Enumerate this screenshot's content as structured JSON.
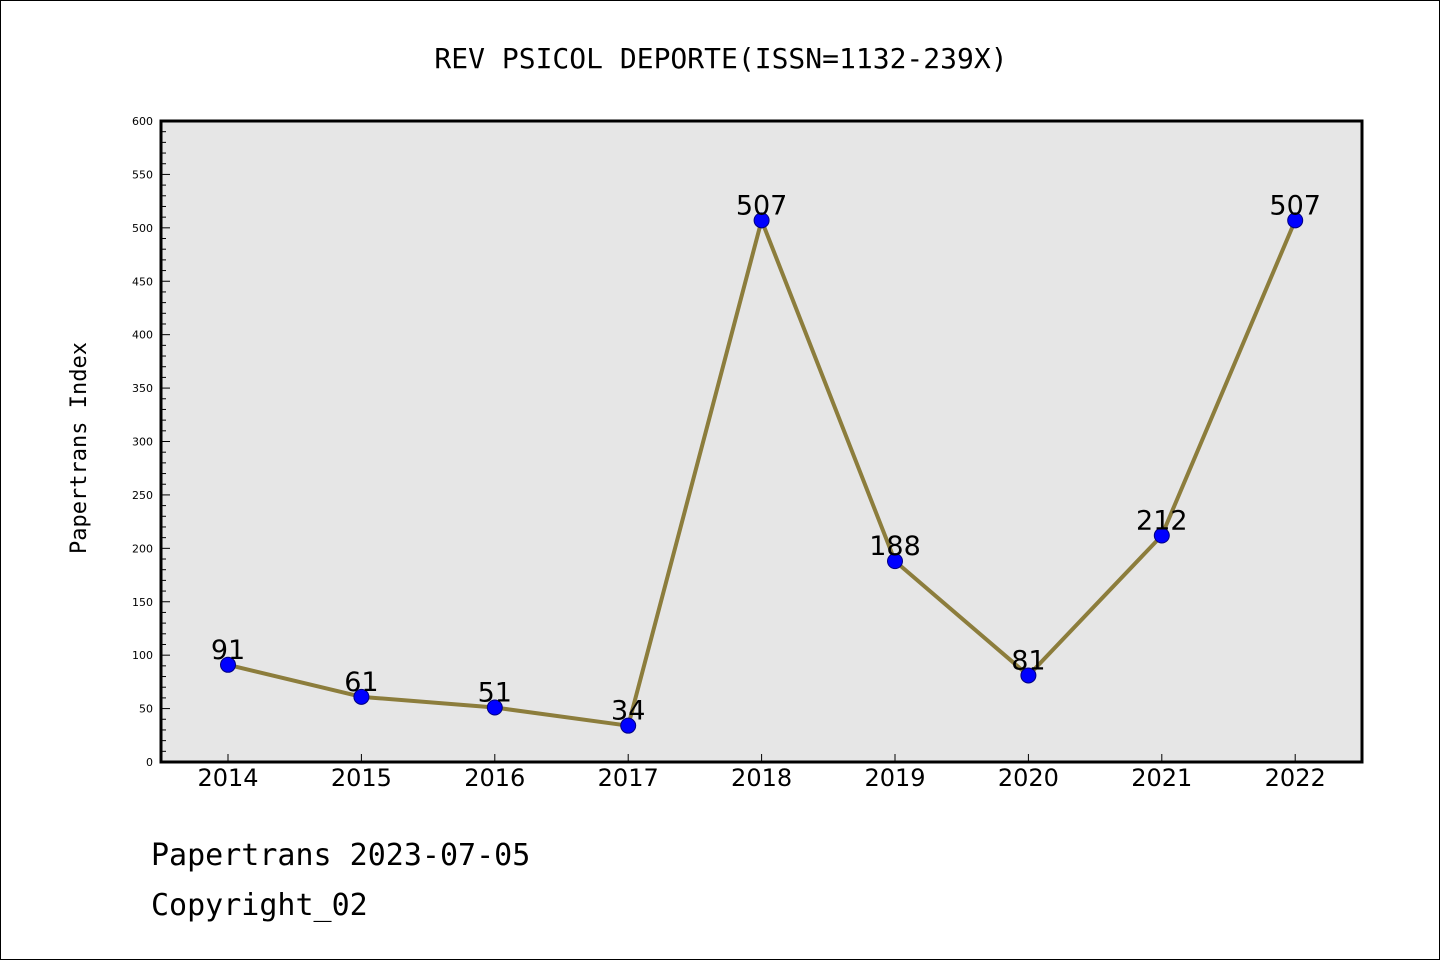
{
  "chart_data": {
    "type": "line",
    "title": "REV PSICOL DEPORTE(ISSN=1132-239X)",
    "xlabel": "",
    "ylabel": "Papertrans Index",
    "categories": [
      "2014",
      "2015",
      "2016",
      "2017",
      "2018",
      "2019",
      "2020",
      "2021",
      "2022"
    ],
    "series": [
      {
        "values": [
          91,
          61,
          51,
          34,
          507,
          188,
          81,
          212,
          507
        ],
        "line_color": "#8c7d3c",
        "marker_color": "#0000ff"
      }
    ],
    "data_labels": [
      "91",
      "61",
      "51",
      "34",
      "507",
      "188",
      "81",
      "212",
      "507"
    ],
    "ylim": [
      0,
      600
    ],
    "yticks": [
      "0",
      "50",
      "100",
      "150",
      "200",
      "250",
      "300",
      "350",
      "400",
      "450",
      "500",
      "550",
      "600"
    ],
    "grid": false,
    "plot_background": "#e6e6e6"
  },
  "footer": {
    "date_line": "Papertrans 2023-07-05",
    "copyright": "Copyright_02"
  }
}
